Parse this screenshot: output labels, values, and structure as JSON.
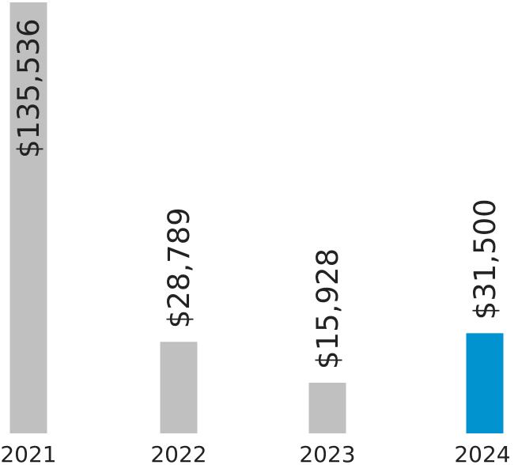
{
  "chart_data": {
    "type": "bar",
    "categories": [
      "2021",
      "2022",
      "2023",
      "2024"
    ],
    "values": [
      135536,
      28789,
      15928,
      31500
    ],
    "value_labels": [
      "$135,536",
      "$28,789",
      "$15,928",
      "$31,500"
    ],
    "bar_colors": [
      "#c0c0c0",
      "#c0c0c0",
      "#c0c0c0",
      "#0093d0"
    ],
    "title": "",
    "xlabel": "",
    "ylabel": "",
    "ylim": [
      0,
      135536
    ],
    "grid": false,
    "legend": "none"
  }
}
